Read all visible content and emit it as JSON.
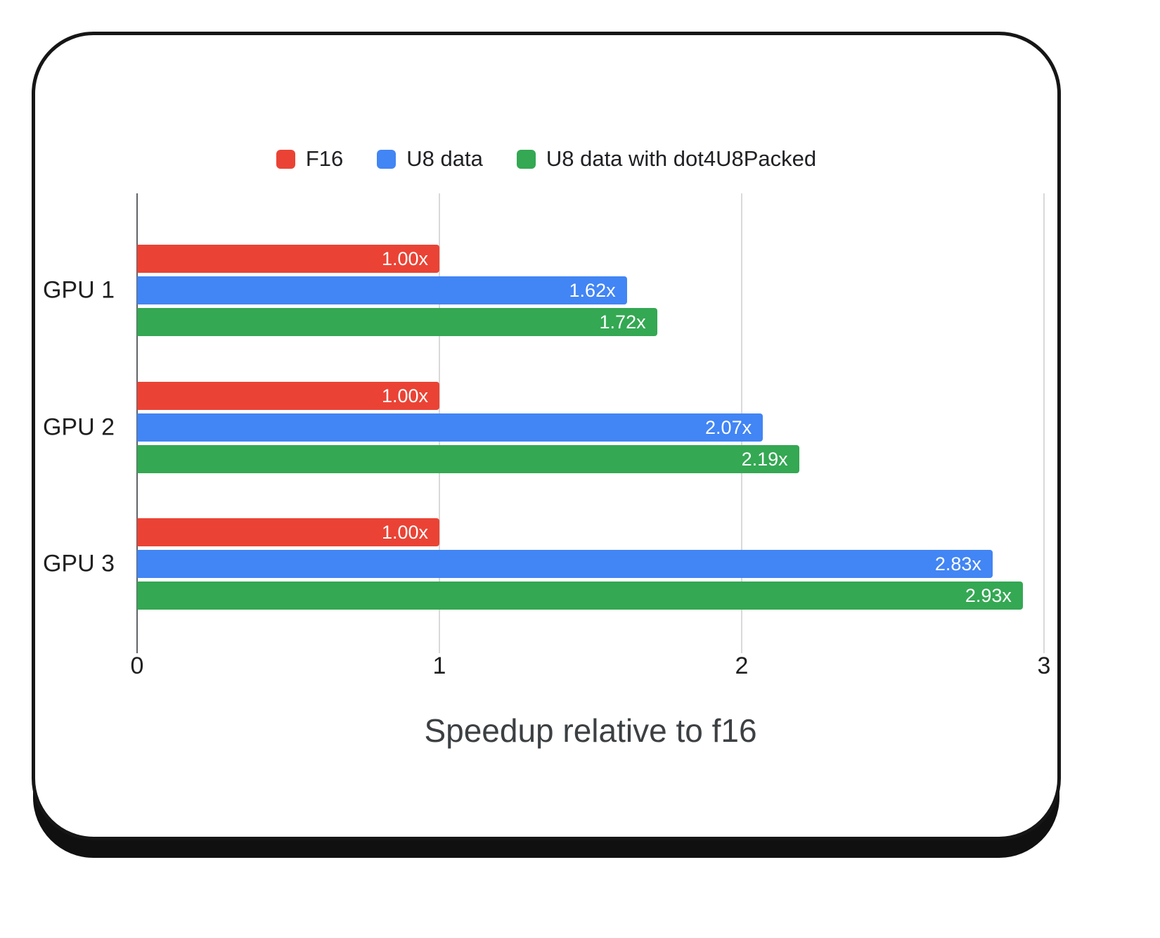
{
  "colors": {
    "background": "#ffffff",
    "card_border": "#161616",
    "card_shadow": "#101010",
    "grid": "#d9d9d9",
    "axis_line": "#5f6368",
    "bar_label_text": "#ffffff",
    "text": "#1f1f1f",
    "axis_title_text": "#3c4043"
  },
  "chart_data": {
    "type": "bar",
    "orientation": "horizontal",
    "xlabel": "Speedup relative to f16",
    "categories": [
      "GPU 1",
      "GPU 2",
      "GPU 3"
    ],
    "series": [
      {
        "name": "F16",
        "color": "#ea4335",
        "values": [
          1.0,
          1.0,
          1.0
        ],
        "labels": [
          "1.00x",
          "1.00x",
          "1.00x"
        ]
      },
      {
        "name": "U8 data",
        "color": "#4285f4",
        "values": [
          1.62,
          2.07,
          2.83
        ],
        "labels": [
          "1.62x",
          "2.07x",
          "2.83x"
        ]
      },
      {
        "name": "U8 data with dot4U8Packed",
        "color": "#34a853",
        "values": [
          1.72,
          2.19,
          2.93
        ],
        "labels": [
          "1.72x",
          "2.19x",
          "2.93x"
        ]
      }
    ],
    "xlim": [
      0,
      3
    ],
    "x_ticks": [
      "0",
      "1",
      "2",
      "3"
    ],
    "grid": true,
    "legend_position": "top"
  }
}
